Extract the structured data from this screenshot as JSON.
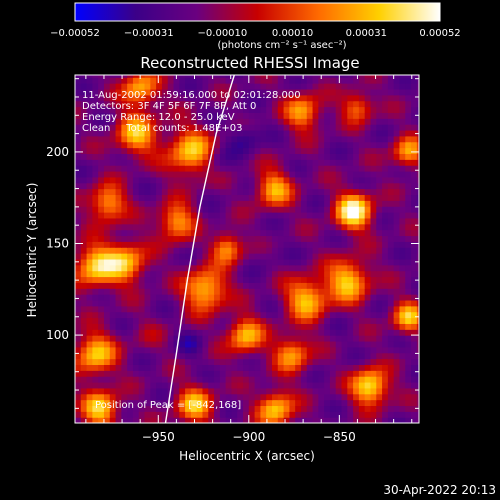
{
  "chart_data": {
    "type": "heatmap",
    "title": "Reconstructed RHESSI Image",
    "xlabel": "Heliocentric X (arcsec)",
    "ylabel": "Heliocentric Y (arcsec)",
    "xlim": [
      -996,
      -806
    ],
    "ylim": [
      52,
      242
    ],
    "x_ticks": [
      -950,
      -900,
      -850
    ],
    "y_ticks": [
      100,
      150,
      200
    ],
    "x_tick_labels": [
      "−950",
      "−900",
      "−850"
    ],
    "y_tick_labels": [
      "100",
      "150",
      "200"
    ],
    "colorbar": {
      "range": [
        -0.00052,
        0.00052
      ],
      "ticks": [
        -0.00052,
        -0.00031,
        -0.0001,
        0.0001,
        0.00031,
        0.00052
      ],
      "tick_labels": [
        "−0.00052",
        "−0.00031",
        "−0.00010",
        "0.00010",
        "0.00031",
        "0.00052"
      ],
      "units": "(photons cm⁻² s⁻¹ asec⁻²)",
      "colormap": [
        "#0000ff",
        "#3b0088",
        "#6a0080",
        "#c80000",
        "#ff6a00",
        "#ffd000",
        "#ffffff"
      ]
    },
    "annotations": [
      "11-Aug-2002 01:59:16.000 to 02:01:28.000",
      "Detectors: 3F 4F 5F 6F 7F 8F, Att 0",
      "Energy Range: 12.0 - 25.0 keV",
      "Clean     Total counts: 1.48E+03"
    ],
    "peak_label": "Position of Peak = [-842,168]",
    "peak": [
      -842,
      168
    ],
    "limb_curve": [
      [
        -946,
        52
      ],
      [
        -940,
        90
      ],
      [
        -934,
        130
      ],
      [
        -927,
        170
      ],
      [
        -918,
        210
      ],
      [
        -908,
        242
      ]
    ],
    "hotspots": [
      {
        "x": -842,
        "y": 168,
        "v": 1.0,
        "s": 7
      },
      {
        "x": -833,
        "y": 72,
        "v": 0.85,
        "s": 7
      },
      {
        "x": -845,
        "y": 130,
        "v": 0.7,
        "s": 8
      },
      {
        "x": -868,
        "y": 120,
        "v": 0.65,
        "s": 8
      },
      {
        "x": -978,
        "y": 172,
        "v": 0.55,
        "s": 7
      },
      {
        "x": -985,
        "y": 138,
        "v": 0.7,
        "s": 8
      },
      {
        "x": -968,
        "y": 140,
        "v": 0.6,
        "s": 8
      },
      {
        "x": -924,
        "y": 125,
        "v": 0.7,
        "s": 8
      },
      {
        "x": -932,
        "y": 200,
        "v": 0.65,
        "s": 9
      },
      {
        "x": -962,
        "y": 210,
        "v": 0.6,
        "s": 8
      },
      {
        "x": -960,
        "y": 235,
        "v": 0.55,
        "s": 7
      },
      {
        "x": -985,
        "y": 90,
        "v": 0.65,
        "s": 8
      },
      {
        "x": -982,
        "y": 60,
        "v": 0.7,
        "s": 7
      },
      {
        "x": -930,
        "y": 62,
        "v": 0.6,
        "s": 7
      },
      {
        "x": -940,
        "y": 162,
        "v": 0.55,
        "s": 7
      },
      {
        "x": -902,
        "y": 100,
        "v": 0.6,
        "s": 7
      },
      {
        "x": -885,
        "y": 60,
        "v": 0.65,
        "s": 7
      },
      {
        "x": -876,
        "y": 90,
        "v": 0.5,
        "s": 7
      },
      {
        "x": -812,
        "y": 110,
        "v": 0.6,
        "s": 6
      },
      {
        "x": -812,
        "y": 200,
        "v": 0.5,
        "s": 6
      },
      {
        "x": -886,
        "y": 180,
        "v": 0.55,
        "s": 7
      },
      {
        "x": -870,
        "y": 222,
        "v": 0.5,
        "s": 7
      },
      {
        "x": -840,
        "y": 225,
        "v": 0.35,
        "s": 6
      },
      {
        "x": -912,
        "y": 148,
        "v": 0.5,
        "s": 6
      },
      {
        "x": -955,
        "y": 100,
        "v": -0.2,
        "s": 7
      },
      {
        "x": -918,
        "y": 195,
        "v": -0.6,
        "s": 6
      },
      {
        "x": -902,
        "y": 208,
        "v": -0.7,
        "s": 6
      },
      {
        "x": -932,
        "y": 95,
        "v": -0.6,
        "s": 5
      },
      {
        "x": -922,
        "y": 155,
        "v": -0.5,
        "s": 5
      },
      {
        "x": -890,
        "y": 145,
        "v": -0.45,
        "s": 6
      },
      {
        "x": -850,
        "y": 100,
        "v": -0.4,
        "s": 6
      }
    ]
  },
  "footer": {
    "timestamp": "30-Apr-2022 20:13"
  }
}
